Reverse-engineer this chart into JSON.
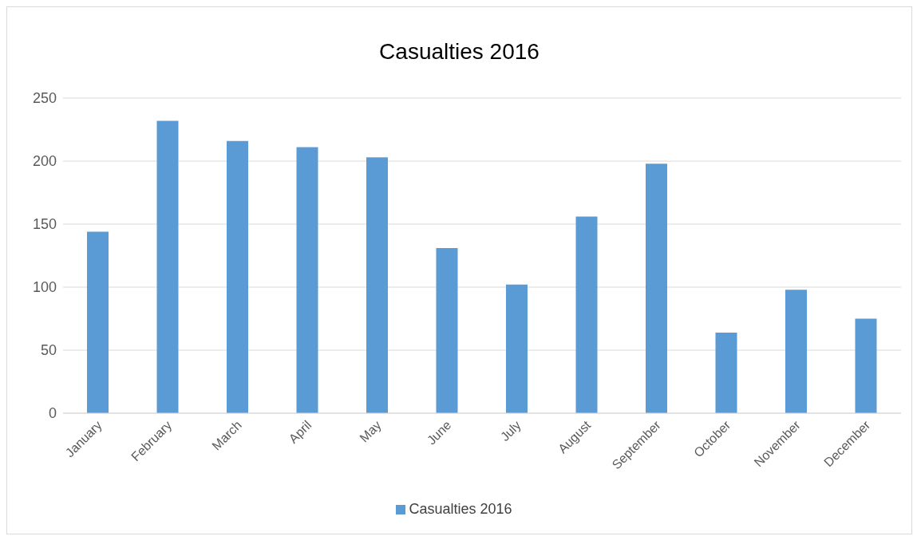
{
  "chart_data": {
    "type": "bar",
    "title": "Casualties 2016",
    "categories": [
      "January",
      "February",
      "March",
      "April",
      "May",
      "June",
      "July",
      "August",
      "September",
      "October",
      "November",
      "December"
    ],
    "series": [
      {
        "name": "Casualties 2016",
        "color": "#5b9bd5",
        "values": [
          144,
          232,
          216,
          211,
          203,
          131,
          102,
          156,
          198,
          64,
          98,
          75
        ]
      }
    ],
    "ylim": [
      0,
      250
    ],
    "yticks": [
      0,
      50,
      100,
      150,
      200,
      250
    ],
    "grid": "y",
    "legend": "bottom"
  }
}
